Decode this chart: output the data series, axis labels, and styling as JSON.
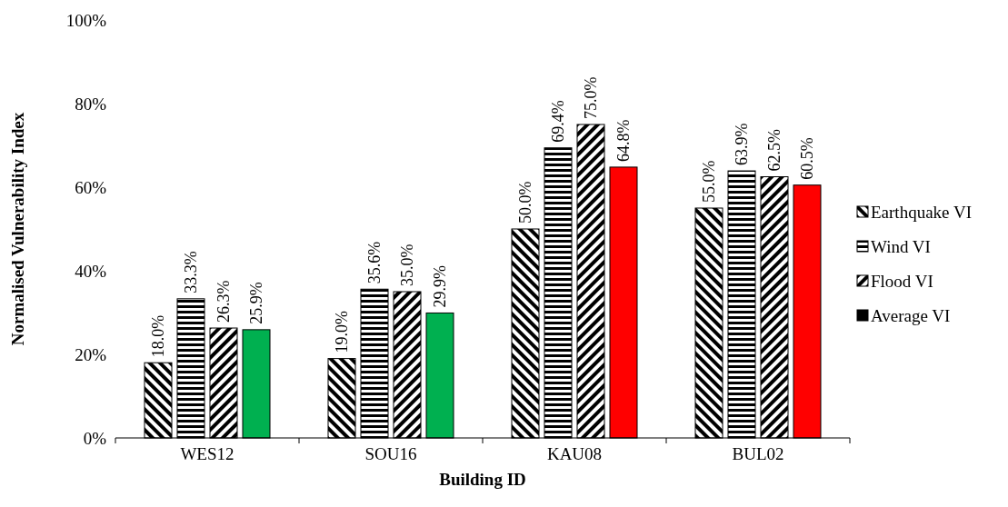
{
  "chart_data": {
    "type": "bar",
    "xlabel": "Building ID",
    "ylabel": "Normalised Vulnerability Index",
    "categories": [
      "WES12",
      "SOU16",
      "KAU08",
      "BUL02"
    ],
    "ylim": [
      0,
      100
    ],
    "yticks": [
      {
        "value": 0,
        "label": "0%"
      },
      {
        "value": 20,
        "label": "20%"
      },
      {
        "value": 40,
        "label": "40%"
      },
      {
        "value": 60,
        "label": "60%"
      },
      {
        "value": 80,
        "label": "80%"
      },
      {
        "value": 100,
        "label": "100%"
      }
    ],
    "grid": false,
    "legend": "right",
    "series": [
      {
        "name": "Earthquake VI",
        "color": "#000000",
        "values": [
          18.0,
          19.0,
          50.0,
          55.0
        ],
        "value_labels": [
          "18.0%",
          "19.0%",
          "50.0%",
          "55.0%"
        ]
      },
      {
        "name": "Wind VI",
        "color": "#000000",
        "values": [
          33.3,
          35.6,
          69.4,
          63.9
        ],
        "value_labels": [
          "33.3%",
          "35.6%",
          "69.4%",
          "63.9%"
        ]
      },
      {
        "name": "Flood VI",
        "color": "#000000",
        "values": [
          26.3,
          35.0,
          75.0,
          62.5
        ],
        "value_labels": [
          "26.3%",
          "35.0%",
          "75.0%",
          "62.5%"
        ]
      },
      {
        "name": "Average VI",
        "color": "#000000",
        "colors": [
          "#00b050",
          "#00b050",
          "#ff0000",
          "#ff0000"
        ],
        "values": [
          25.9,
          29.9,
          64.8,
          60.5
        ],
        "value_labels": [
          "25.9%",
          "29.9%",
          "64.8%",
          "60.5%"
        ]
      }
    ]
  }
}
